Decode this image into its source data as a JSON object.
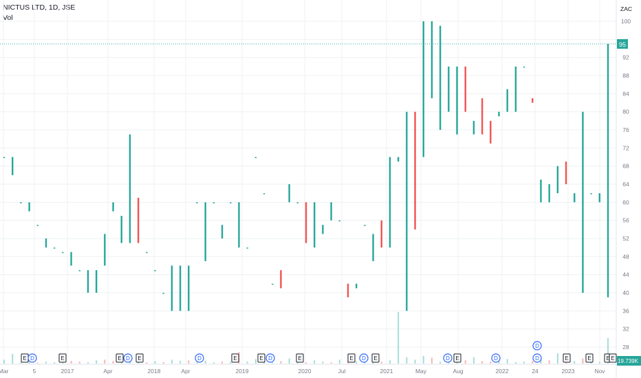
{
  "header": {
    "title": "NICTUS LTD, 1D, JSE",
    "indicator": "Vol",
    "currency": "ZAC"
  },
  "colors": {
    "up": "#26a69a",
    "down": "#ef5350",
    "upVol": "#a6ddd8",
    "downVol": "#f7b5b4",
    "grid": "#eef0f3",
    "axis": "#787b86",
    "lastPrice": "#26a69a",
    "volBadge": "#26a69a",
    "eventBlue": "#2962ff",
    "eventPurple": "#9c27b0"
  },
  "chart_data": {
    "type": "bar",
    "symbol": "NICTUS LTD",
    "interval": "1D",
    "exchange": "JSE",
    "unit": "ZAC",
    "ylim": [
      26,
      101
    ],
    "y_ticks": [
      28,
      32,
      36,
      40,
      44,
      48,
      52,
      56,
      60,
      64,
      68,
      72,
      76,
      80,
      84,
      88,
      92,
      96,
      100
    ],
    "x_ticks": [
      "Mar",
      "5",
      "2017",
      "Apr",
      "2018",
      "Apr",
      "2019",
      "2020",
      "Jul",
      "2021",
      "May",
      "Aug",
      "2022",
      "24",
      "2023",
      "Nov"
    ],
    "last_price": 95,
    "last_volume_label": "19.739K",
    "candles": [
      {
        "o": 70,
        "c": 70
      },
      {
        "o": 66,
        "c": 70
      },
      {
        "o": 60,
        "c": 60
      },
      {
        "o": 58,
        "c": 60
      },
      {
        "o": 55,
        "c": 55
      },
      {
        "o": 50,
        "c": 52
      },
      {
        "o": 50,
        "c": 50
      },
      {
        "o": 49,
        "c": 49
      },
      {
        "o": 46,
        "c": 49
      },
      {
        "o": 45,
        "c": 45
      },
      {
        "o": 40,
        "c": 45
      },
      {
        "o": 40,
        "c": 45
      },
      {
        "o": 46,
        "c": 53
      },
      {
        "o": 58,
        "c": 60
      },
      {
        "o": 51,
        "c": 57
      },
      {
        "o": 51,
        "c": 75
      },
      {
        "o": 61,
        "c": 51
      },
      {
        "o": 49,
        "c": 49
      },
      {
        "o": 45,
        "c": 45
      },
      {
        "o": 40,
        "c": 40
      },
      {
        "o": 36,
        "c": 46
      },
      {
        "o": 36,
        "c": 46
      },
      {
        "o": 36,
        "c": 46
      },
      {
        "o": 60,
        "c": 60
      },
      {
        "o": 47,
        "c": 60
      },
      {
        "o": 60,
        "c": 60
      },
      {
        "o": 52,
        "c": 55
      },
      {
        "o": 60,
        "c": 60
      },
      {
        "o": 50,
        "c": 60
      },
      {
        "o": 50,
        "c": 50
      },
      {
        "o": 70,
        "c": 70
      },
      {
        "o": 62,
        "c": 62
      },
      {
        "o": 42,
        "c": 42
      },
      {
        "o": 45,
        "c": 41
      },
      {
        "o": 60,
        "c": 64
      },
      {
        "o": 60,
        "c": 60
      },
      {
        "o": 60,
        "c": 51
      },
      {
        "o": 50,
        "c": 60
      },
      {
        "o": 53,
        "c": 55
      },
      {
        "o": 56,
        "c": 60
      },
      {
        "o": 56,
        "c": 56
      },
      {
        "o": 42,
        "c": 39
      },
      {
        "o": 41,
        "c": 42
      },
      {
        "o": 55,
        "c": 55
      },
      {
        "o": 47,
        "c": 53
      },
      {
        "o": 56,
        "c": 50
      },
      {
        "o": 50,
        "c": 70
      },
      {
        "o": 69,
        "c": 70
      },
      {
        "o": 36,
        "c": 80
      },
      {
        "o": 80,
        "c": 54
      },
      {
        "o": 70,
        "c": 100
      },
      {
        "o": 83,
        "c": 100
      },
      {
        "o": 76,
        "c": 99
      },
      {
        "o": 80,
        "c": 90
      },
      {
        "o": 75,
        "c": 90
      },
      {
        "o": 90,
        "c": 80
      },
      {
        "o": 75,
        "c": 78
      },
      {
        "o": 83,
        "c": 75
      },
      {
        "o": 78,
        "c": 73
      },
      {
        "o": 79,
        "c": 80
      },
      {
        "o": 80,
        "c": 85
      },
      {
        "o": 80,
        "c": 90
      },
      {
        "o": 90,
        "c": 90
      },
      {
        "o": 83,
        "c": 82
      },
      {
        "o": 60,
        "c": 65
      },
      {
        "o": 60,
        "c": 64
      },
      {
        "o": 62,
        "c": 68
      },
      {
        "o": 69,
        "c": 64
      },
      {
        "o": 60,
        "c": 62
      },
      {
        "o": 40,
        "c": 80
      },
      {
        "o": 62,
        "c": 62
      },
      {
        "o": 60,
        "c": 62
      },
      {
        "o": 39,
        "c": 95
      }
    ],
    "volumes": [
      {
        "v": 3.0,
        "up": true
      },
      {
        "v": 7.5,
        "up": true
      },
      {
        "v": 1.0,
        "up": true
      },
      {
        "v": 1.2,
        "up": true
      },
      {
        "v": 0.8,
        "up": false
      },
      {
        "v": 1.5,
        "up": true
      },
      {
        "v": 1.0,
        "up": true
      },
      {
        "v": 1.3,
        "up": true
      },
      {
        "v": 2.0,
        "up": false
      },
      {
        "v": 1.5,
        "up": false
      },
      {
        "v": 1.0,
        "up": true
      },
      {
        "v": 2.5,
        "up": true
      },
      {
        "v": 3.0,
        "up": false
      },
      {
        "v": 2.0,
        "up": false
      },
      {
        "v": 4.5,
        "up": true
      },
      {
        "v": 5.0,
        "up": true
      },
      {
        "v": 3.5,
        "up": true
      },
      {
        "v": 1.0,
        "up": false
      },
      {
        "v": 1.8,
        "up": true
      },
      {
        "v": 1.2,
        "up": false
      },
      {
        "v": 3.0,
        "up": true
      },
      {
        "v": 2.0,
        "up": true
      },
      {
        "v": 2.5,
        "up": false
      },
      {
        "v": 1.5,
        "up": true
      },
      {
        "v": 2.2,
        "up": true
      },
      {
        "v": 1.0,
        "up": true
      },
      {
        "v": 1.5,
        "up": false
      },
      {
        "v": 1.2,
        "up": true
      },
      {
        "v": 9.0,
        "up": false
      },
      {
        "v": 1.5,
        "up": true
      },
      {
        "v": 3.5,
        "up": true
      },
      {
        "v": 2.0,
        "up": true
      },
      {
        "v": 1.0,
        "up": true
      },
      {
        "v": 1.8,
        "up": false
      },
      {
        "v": 4.0,
        "up": true
      },
      {
        "v": 1.0,
        "up": true
      },
      {
        "v": 1.0,
        "up": false
      },
      {
        "v": 2.5,
        "up": true
      },
      {
        "v": 1.5,
        "up": true
      },
      {
        "v": 1.0,
        "up": false
      },
      {
        "v": 3.0,
        "up": true
      },
      {
        "v": 2.0,
        "up": false
      },
      {
        "v": 1.5,
        "up": true
      },
      {
        "v": 2.0,
        "up": true
      },
      {
        "v": 3.5,
        "up": true
      },
      {
        "v": 1.5,
        "up": false
      },
      {
        "v": 2.5,
        "up": true
      },
      {
        "v": 40.0,
        "up": true
      },
      {
        "v": 5.0,
        "up": true
      },
      {
        "v": 3.0,
        "up": true
      },
      {
        "v": 6.0,
        "up": true
      },
      {
        "v": 4.5,
        "up": false
      },
      {
        "v": 1.5,
        "up": true
      },
      {
        "v": 2.0,
        "up": true
      },
      {
        "v": 4.0,
        "up": true
      },
      {
        "v": 2.5,
        "up": false
      },
      {
        "v": 5.0,
        "up": true
      },
      {
        "v": 1.8,
        "up": false
      },
      {
        "v": 1.5,
        "up": false
      },
      {
        "v": 2.0,
        "up": true
      },
      {
        "v": 3.5,
        "up": true
      },
      {
        "v": 1.2,
        "up": true
      },
      {
        "v": 1.5,
        "up": true
      },
      {
        "v": 2.0,
        "up": false
      },
      {
        "v": 3.0,
        "up": true
      },
      {
        "v": 2.5,
        "up": false
      },
      {
        "v": 8.0,
        "up": true
      },
      {
        "v": 2.0,
        "up": false
      },
      {
        "v": 2.0,
        "up": true
      },
      {
        "v": 4.0,
        "up": false
      },
      {
        "v": 3.0,
        "up": true
      },
      {
        "v": 1.5,
        "up": true
      },
      {
        "v": 19.7,
        "up": true
      }
    ],
    "events": [
      "E",
      "D",
      "E",
      "E",
      "D",
      "E",
      "D",
      "E",
      "E",
      "D",
      "E",
      "E",
      "D",
      "E",
      "D",
      "E",
      "D",
      "D",
      "E",
      "E",
      "E",
      "E",
      "E",
      "E",
      "D",
      "E"
    ]
  }
}
